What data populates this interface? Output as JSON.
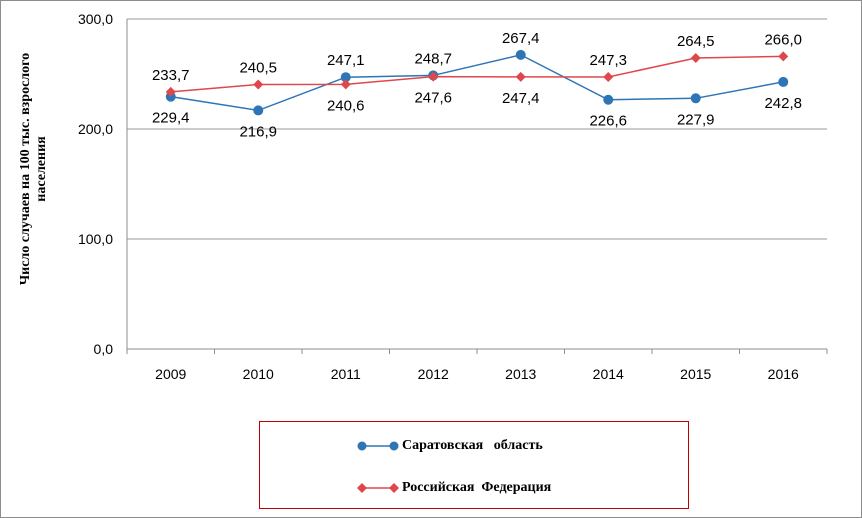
{
  "chart_data": {
    "type": "line",
    "title": "",
    "ylabel": "Число случаев на 100 тыс. взрослого населения",
    "xlabel": "",
    "categories": [
      "2009",
      "2010",
      "2011",
      "2012",
      "2013",
      "2014",
      "2015",
      "2016"
    ],
    "ylim": [
      0,
      300
    ],
    "yticks": [
      "0,0",
      "100,0",
      "200,0",
      "300,0"
    ],
    "grid": true,
    "legend_position": "bottom",
    "series": [
      {
        "name": "Саратовская   область",
        "color": "#2e75b6",
        "marker": "circle",
        "values": [
          229.4,
          216.9,
          247.1,
          248.7,
          267.4,
          226.6,
          227.9,
          242.8
        ],
        "labels": [
          "229,4",
          "216,9",
          "247,1",
          "248,7",
          "267,4",
          "226,6",
          "227,9",
          "242,8"
        ]
      },
      {
        "name": "Российская  Федерация",
        "color": "#e0474c",
        "marker": "diamond",
        "values": [
          233.7,
          240.5,
          240.6,
          247.6,
          247.4,
          247.3,
          264.5,
          266.0
        ],
        "labels": [
          "233,7",
          "240,5",
          "240,6",
          "247,6",
          "247,4",
          "247,3",
          "264,5",
          "266,0"
        ]
      }
    ]
  }
}
